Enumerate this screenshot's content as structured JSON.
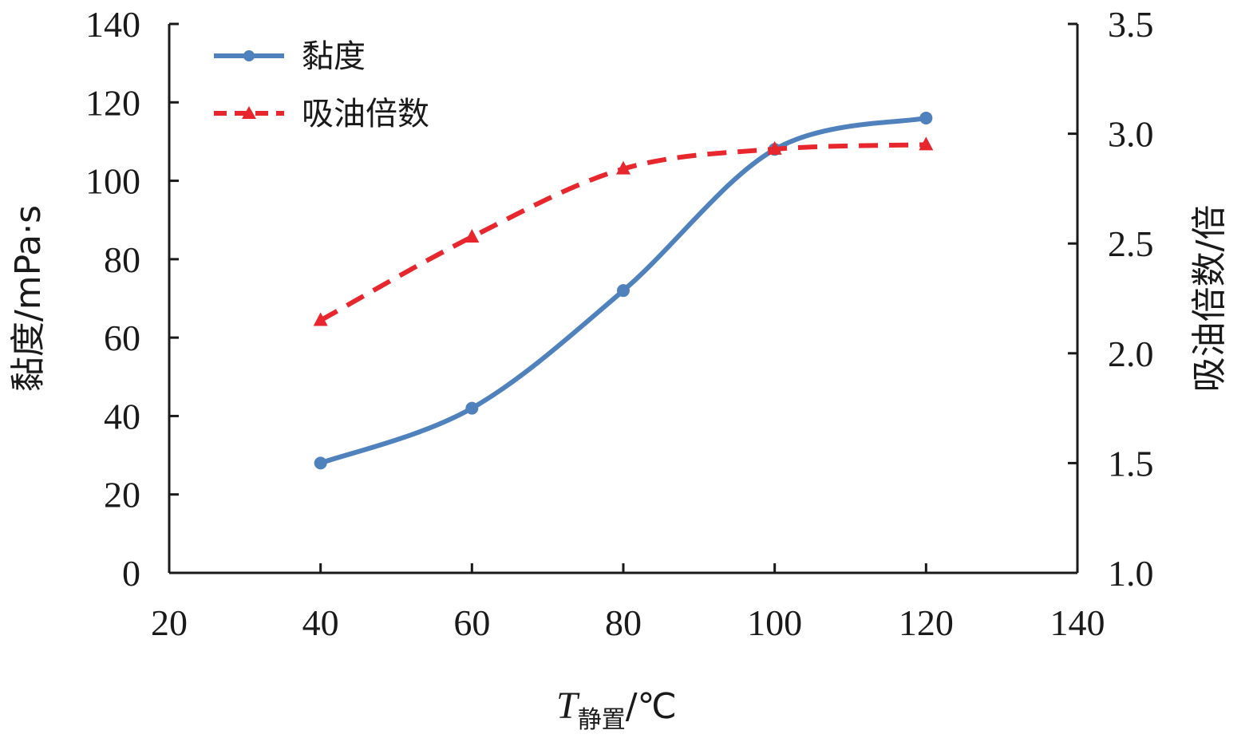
{
  "chart_data": {
    "type": "line",
    "x": [
      40,
      60,
      80,
      100,
      120
    ],
    "xlim": [
      20,
      140
    ],
    "xticks": [
      "20",
      "40",
      "60",
      "80",
      "100",
      "120",
      "140"
    ],
    "xlabel": {
      "main": "T",
      "sub": "静置",
      "unit": "/℃"
    },
    "ylim_left": [
      0,
      140
    ],
    "yticks_left": [
      "0",
      "20",
      "40",
      "60",
      "80",
      "100",
      "120",
      "140"
    ],
    "ylabel_left": "黏度/mPa·s",
    "ylim_right": [
      1.0,
      3.5
    ],
    "yticks_right": [
      "1.0",
      "1.5",
      "2.0",
      "2.5",
      "3.0",
      "3.5"
    ],
    "ylabel_right": "吸油倍数/倍",
    "series": [
      {
        "name": "黏度",
        "axis": "left",
        "values": [
          28,
          42,
          72,
          108,
          116
        ],
        "color": "#4f81bd",
        "style": "solid",
        "marker": "circle"
      },
      {
        "name": "吸油倍数",
        "axis": "right",
        "values": [
          2.15,
          2.53,
          2.84,
          2.93,
          2.95
        ],
        "color": "#e8262d",
        "style": "dashed",
        "marker": "triangle"
      }
    ],
    "legend_position": "top-left",
    "grid": false
  }
}
